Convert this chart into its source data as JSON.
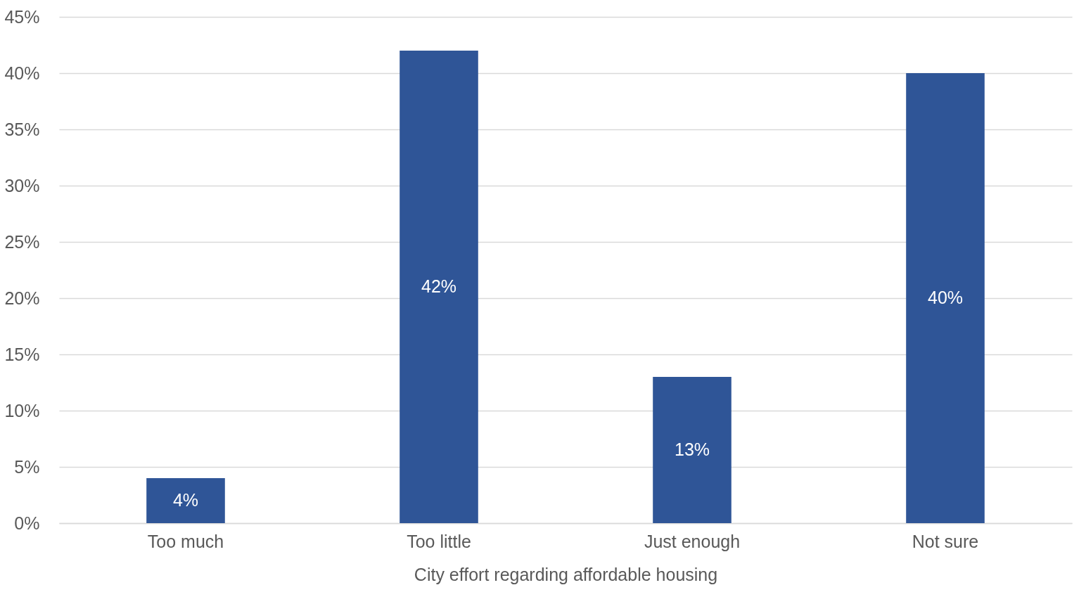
{
  "chart_data": {
    "type": "bar",
    "xlabel": "City effort regarding affordable housing",
    "categories": [
      "Too much",
      "Too little",
      "Just enough",
      "Not sure"
    ],
    "values": [
      4,
      42,
      13,
      40
    ],
    "value_labels": [
      "4%",
      "42%",
      "13%",
      "40%"
    ],
    "color": "#2f5597",
    "ylim": [
      0,
      45
    ],
    "yticks": [
      {
        "value": 0,
        "label": "0%"
      },
      {
        "value": 5,
        "label": "5%"
      },
      {
        "value": 10,
        "label": "10%"
      },
      {
        "value": 15,
        "label": "15%"
      },
      {
        "value": 20,
        "label": "20%"
      },
      {
        "value": 25,
        "label": "25%"
      },
      {
        "value": 30,
        "label": "30%"
      },
      {
        "value": 35,
        "label": "35%"
      },
      {
        "value": 40,
        "label": "40%"
      },
      {
        "value": 45,
        "label": "45%"
      }
    ],
    "grid": "y"
  }
}
